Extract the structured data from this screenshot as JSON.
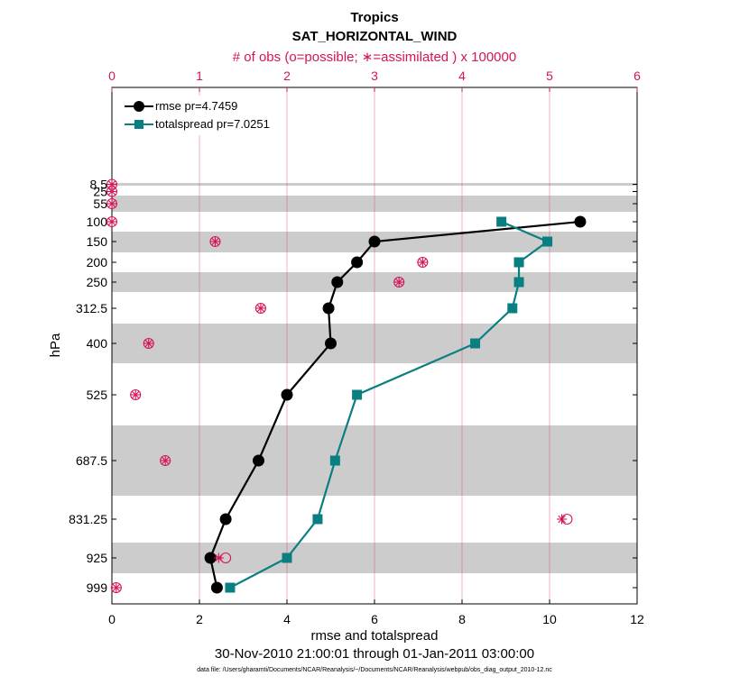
{
  "chart_data": {
    "type": "line",
    "title": "Tropics",
    "subtitle": "SAT_HORIZONTAL_WIND",
    "top_axis_label": "# of obs (o=possible; ∗=assimilated ) x 100000",
    "xlabel": "rmse and totalspread",
    "ylabel": "hPa",
    "date_range": "30-Nov-2010 21:00:01 through 01-Jan-2011 03:00:00",
    "data_file": "data file: /Users/gharamti/Documents/NCAR/Reanalysis/~/Documents/NCAR/Reanalysis/webpub/obs_diag_output_2010-12.nc",
    "xlim": [
      0,
      12
    ],
    "x_ticks": [
      "0",
      "2",
      "4",
      "6",
      "8",
      "10",
      "12"
    ],
    "top_xlim": [
      0,
      6
    ],
    "top_ticks": [
      "0",
      "1",
      "2",
      "3",
      "4",
      "5",
      "6"
    ],
    "levels": [
      8.5,
      25,
      55,
      100,
      150,
      200,
      250,
      312.5,
      400,
      525,
      687.5,
      831.25,
      925,
      999
    ],
    "level_labels": [
      "8.5",
      "25",
      "55",
      "100",
      "150",
      "200",
      "250",
      "312.5",
      "400",
      "525",
      "687.5",
      "831.25",
      "925",
      "999"
    ],
    "series": [
      {
        "name": "rmse",
        "legend": "rmse pr=4.7459",
        "color": "#000000",
        "marker": "circle",
        "levels": [
          100,
          150,
          200,
          250,
          312.5,
          400,
          525,
          687.5,
          831.25,
          925,
          999
        ],
        "values": [
          10.7,
          6.0,
          5.6,
          5.15,
          4.95,
          5.0,
          4.0,
          3.35,
          2.6,
          2.25,
          2.4
        ]
      },
      {
        "name": "totalspread",
        "legend": "totalspread pr=7.0251",
        "color": "#0a7f82",
        "marker": "square",
        "levels": [
          100,
          150,
          200,
          250,
          312.5,
          400,
          525,
          687.5,
          831.25,
          925,
          999
        ],
        "values": [
          8.9,
          9.95,
          9.3,
          9.3,
          9.15,
          8.3,
          5.6,
          5.1,
          4.7,
          4.0,
          2.7
        ]
      }
    ],
    "obs_possible": {
      "name": "possible (o)",
      "color": "#d4145a",
      "levels": [
        8.5,
        25,
        55,
        100,
        150,
        200,
        250,
        312.5,
        400,
        525,
        687.5,
        831.25,
        925,
        999
      ],
      "values": [
        0.0,
        0.0,
        0.0,
        0.0,
        1.18,
        3.55,
        3.28,
        1.7,
        0.42,
        0.27,
        0.61,
        5.2,
        1.3,
        0.05
      ]
    },
    "obs_assimilated": {
      "name": "assimilated (∗)",
      "color": "#d4145a",
      "levels": [
        8.5,
        25,
        55,
        100,
        150,
        200,
        250,
        312.5,
        400,
        525,
        687.5,
        831.25,
        925,
        999
      ],
      "values": [
        0.0,
        0.0,
        0.0,
        0.0,
        1.18,
        3.55,
        3.28,
        1.7,
        0.42,
        0.27,
        0.61,
        5.14,
        1.22,
        0.05
      ]
    },
    "grid": true,
    "legend_position": "top-left"
  }
}
